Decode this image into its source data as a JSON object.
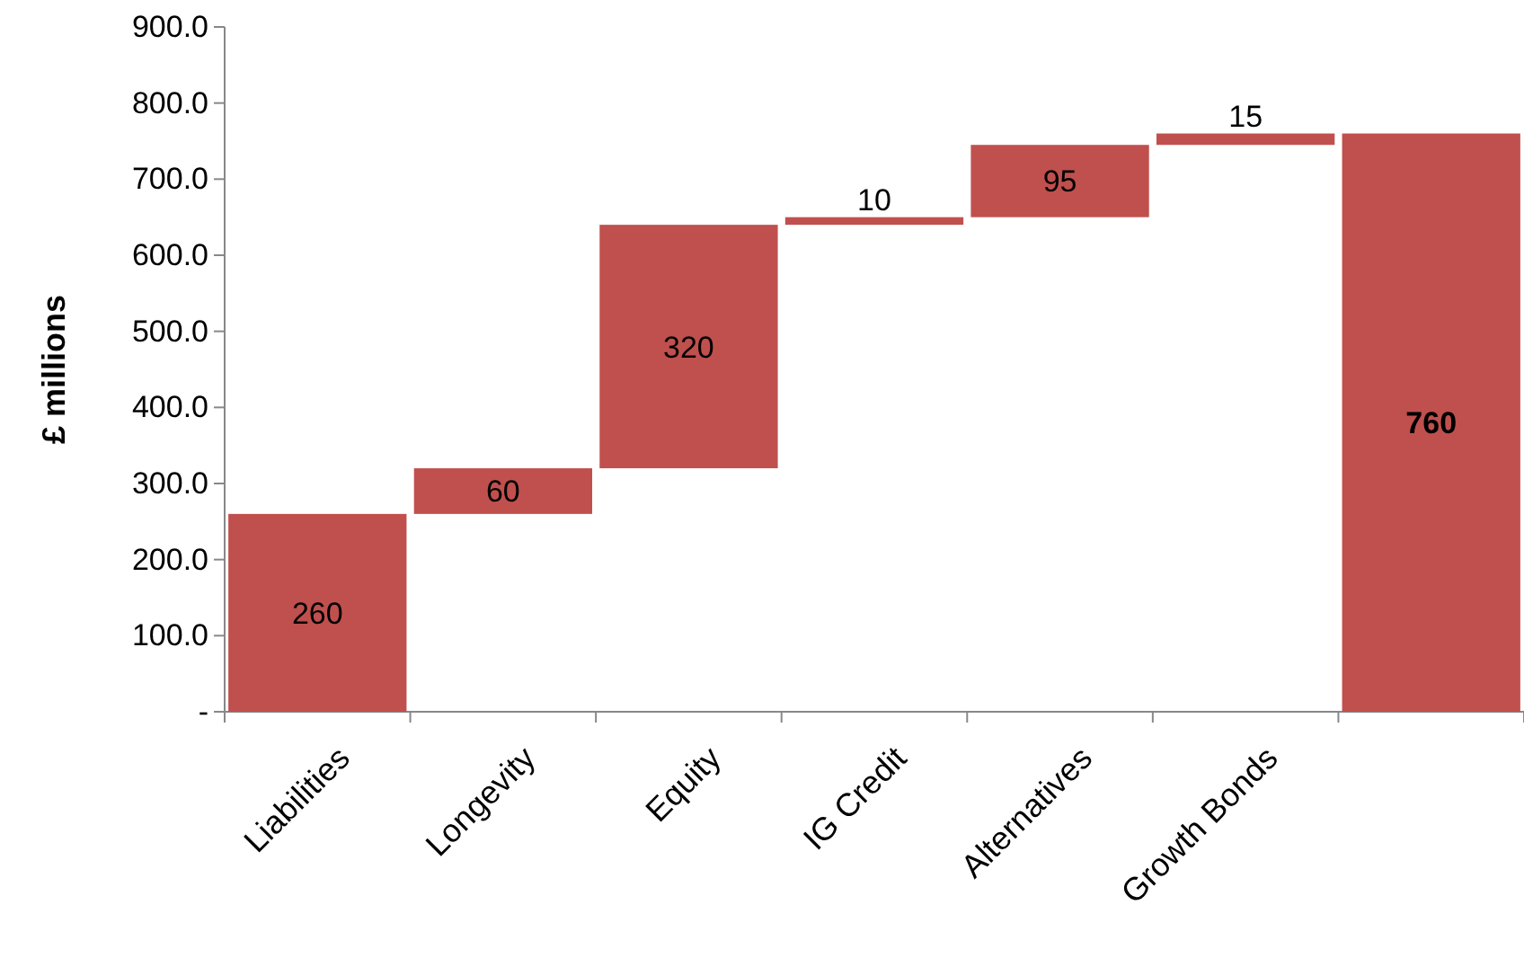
{
  "chart_data": {
    "type": "bar",
    "ylabel": "£ millions",
    "categories": [
      "Liabilities",
      "Longevity",
      "Equity",
      "IG Credit",
      "Alternatives",
      "Growth Bonds",
      null
    ],
    "values": [
      260,
      60,
      320,
      10,
      95,
      15,
      760
    ],
    "base": [
      0,
      260,
      320,
      640,
      650,
      745,
      0
    ],
    "color": "#c0504d",
    "data_labels": true,
    "grid": false,
    "ylim": [
      0,
      900
    ],
    "yticks": [
      {
        "value": 0,
        "label": "-"
      },
      {
        "value": 100,
        "label": "100.0"
      },
      {
        "value": 200,
        "label": "200.0"
      },
      {
        "value": 300,
        "label": "300.0"
      },
      {
        "value": 400,
        "label": "400.0"
      },
      {
        "value": 500,
        "label": "500.0"
      },
      {
        "value": 600,
        "label": "600.0"
      },
      {
        "value": 700,
        "label": "700.0"
      },
      {
        "value": 800,
        "label": "800.0"
      },
      {
        "value": 900,
        "label": "900.0"
      }
    ]
  }
}
